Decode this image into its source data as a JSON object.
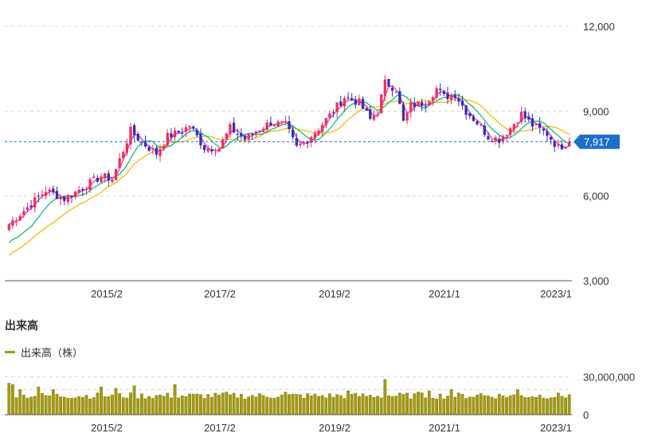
{
  "colors": {
    "up": "#f0305a",
    "down": "#3a2fb0",
    "ma_short": "#e040e0",
    "ma_mid": "#22c27a",
    "ma_long": "#f0c020",
    "volume": "#a39a16",
    "current_price_badge": "#1b6fc9",
    "grid": "#d8d8d8"
  },
  "current_price_label": "7,917",
  "volume_title": "出来高",
  "chart_data": [
    {
      "type": "candlestick",
      "x_ticks": [
        "2015/2",
        "2017/2",
        "2019/2",
        "2021/1",
        "2023/1"
      ],
      "y_ticks": [
        "3,000",
        "6,000",
        "9,000",
        "12,000"
      ],
      "ylim": [
        3000,
        12000
      ],
      "grid": true,
      "current_price": 7917,
      "close_keyframes": [
        [
          0,
          5000
        ],
        [
          5,
          5600
        ],
        [
          10,
          6200
        ],
        [
          15,
          5900
        ],
        [
          20,
          6300
        ],
        [
          25,
          6700
        ],
        [
          28,
          6600
        ],
        [
          33,
          8300
        ],
        [
          36,
          7900
        ],
        [
          40,
          7500
        ],
        [
          43,
          8100
        ],
        [
          47,
          8300
        ],
        [
          49,
          8500
        ],
        [
          53,
          7700
        ],
        [
          57,
          7700
        ],
        [
          60,
          8400
        ],
        [
          64,
          8000
        ],
        [
          67,
          8300
        ],
        [
          71,
          8600
        ],
        [
          75,
          8500
        ],
        [
          78,
          7700
        ],
        [
          81,
          8000
        ],
        [
          84,
          8400
        ],
        [
          88,
          9000
        ],
        [
          91,
          9500
        ],
        [
          95,
          9300
        ],
        [
          98,
          8700
        ],
        [
          100,
          9000
        ],
        [
          102,
          10000
        ],
        [
          105,
          9800
        ],
        [
          107,
          8600
        ],
        [
          109,
          9200
        ],
        [
          113,
          9300
        ],
        [
          116,
          9800
        ],
        [
          118,
          9500
        ],
        [
          121,
          9600
        ],
        [
          124,
          9000
        ],
        [
          127,
          8600
        ],
        [
          130,
          8100
        ],
        [
          133,
          8000
        ],
        [
          136,
          8400
        ],
        [
          139,
          8900
        ],
        [
          142,
          8500
        ],
        [
          146,
          8200
        ],
        [
          149,
          7700
        ],
        [
          152,
          7917
        ]
      ]
    },
    {
      "type": "bar",
      "title": "出来高",
      "legend": [
        "出来高（株）"
      ],
      "y_ticks": [
        "0",
        "30,000,000"
      ],
      "ylim": [
        0,
        38000000
      ],
      "x_ticks": [
        "2015/2",
        "2017/2",
        "2019/2",
        "2021/1",
        "2023/1"
      ],
      "baseline": 15000000,
      "spikes": [
        [
          0,
          25000000
        ],
        [
          1,
          24000000
        ],
        [
          3,
          20000000
        ],
        [
          8,
          22000000
        ],
        [
          12,
          20000000
        ],
        [
          25,
          22000000
        ],
        [
          29,
          21000000
        ],
        [
          34,
          23000000
        ],
        [
          45,
          24000000
        ],
        [
          59,
          18000000
        ],
        [
          75,
          18000000
        ],
        [
          92,
          19000000
        ],
        [
          102,
          28000000
        ],
        [
          111,
          18000000
        ],
        [
          114,
          19000000
        ],
        [
          120,
          20000000
        ],
        [
          128,
          17000000
        ],
        [
          138,
          20000000
        ],
        [
          152,
          16000000
        ]
      ]
    }
  ]
}
